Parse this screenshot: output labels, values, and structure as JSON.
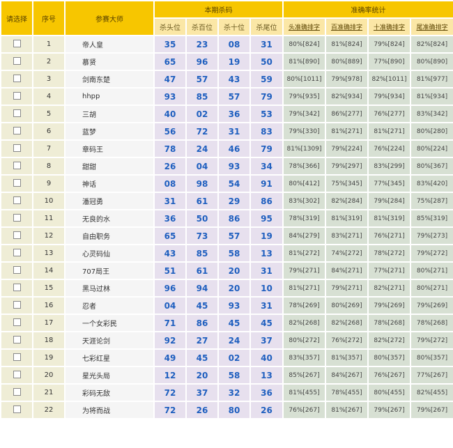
{
  "headers": {
    "select": "请选择",
    "seq": "序号",
    "master": "参赛大师",
    "kill_group": "本期杀码",
    "kill": [
      "杀头位",
      "杀百位",
      "杀十位",
      "杀尾位"
    ],
    "acc_group": "准确率统计",
    "acc": [
      "头准确排字",
      "百准确排字",
      "十准确排字",
      "尾准确排字"
    ]
  },
  "rows": [
    {
      "seq": "1",
      "name": "帝人皇",
      "kill": [
        "35",
        "23",
        "08",
        "31"
      ],
      "acc": [
        "80%[824]",
        "81%[824]",
        "79%[824]",
        "82%[824]"
      ]
    },
    {
      "seq": "2",
      "name": "慕贤",
      "kill": [
        "65",
        "96",
        "19",
        "50"
      ],
      "acc": [
        "81%[890]",
        "80%[889]",
        "77%[890]",
        "80%[890]"
      ]
    },
    {
      "seq": "3",
      "name": "剑南东楚",
      "kill": [
        "47",
        "57",
        "43",
        "59"
      ],
      "acc": [
        "80%[1011]",
        "79%[978]",
        "82%[1011]",
        "81%[977]"
      ]
    },
    {
      "seq": "4",
      "name": "hhpp",
      "kill": [
        "93",
        "85",
        "57",
        "79"
      ],
      "acc": [
        "79%[935]",
        "82%[934]",
        "79%[934]",
        "81%[934]"
      ]
    },
    {
      "seq": "5",
      "name": "三胡",
      "kill": [
        "40",
        "02",
        "36",
        "53"
      ],
      "acc": [
        "79%[342]",
        "86%[277]",
        "76%[277]",
        "83%[342]"
      ]
    },
    {
      "seq": "6",
      "name": "蓝梦",
      "kill": [
        "56",
        "72",
        "31",
        "83"
      ],
      "acc": [
        "79%[330]",
        "81%[271]",
        "81%[271]",
        "80%[280]"
      ]
    },
    {
      "seq": "7",
      "name": "章码王",
      "kill": [
        "78",
        "24",
        "46",
        "79"
      ],
      "acc": [
        "81%[1309]",
        "79%[224]",
        "76%[224]",
        "80%[224]"
      ]
    },
    {
      "seq": "8",
      "name": "甜甜",
      "kill": [
        "26",
        "04",
        "93",
        "34"
      ],
      "acc": [
        "78%[366]",
        "79%[297]",
        "83%[299]",
        "80%[367]"
      ]
    },
    {
      "seq": "9",
      "name": "神话",
      "kill": [
        "08",
        "98",
        "54",
        "91"
      ],
      "acc": [
        "80%[412]",
        "75%[345]",
        "77%[345]",
        "83%[420]"
      ]
    },
    {
      "seq": "10",
      "name": "潘冠勇",
      "kill": [
        "31",
        "61",
        "29",
        "86"
      ],
      "acc": [
        "83%[302]",
        "82%[284]",
        "79%[284]",
        "75%[287]"
      ]
    },
    {
      "seq": "11",
      "name": "无良的水",
      "kill": [
        "36",
        "50",
        "86",
        "95"
      ],
      "acc": [
        "78%[319]",
        "81%[319]",
        "81%[319]",
        "85%[319]"
      ]
    },
    {
      "seq": "12",
      "name": "自由职务",
      "kill": [
        "65",
        "73",
        "57",
        "19"
      ],
      "acc": [
        "84%[279]",
        "83%[271]",
        "76%[271]",
        "79%[273]"
      ]
    },
    {
      "seq": "13",
      "name": "心灵码仙",
      "kill": [
        "43",
        "85",
        "58",
        "13"
      ],
      "acc": [
        "81%[272]",
        "74%[272]",
        "78%[272]",
        "79%[272]"
      ]
    },
    {
      "seq": "14",
      "name": "707局王",
      "kill": [
        "51",
        "61",
        "20",
        "31"
      ],
      "acc": [
        "79%[271]",
        "84%[271]",
        "77%[271]",
        "80%[271]"
      ]
    },
    {
      "seq": "15",
      "name": "黑马过林",
      "kill": [
        "96",
        "94",
        "20",
        "10"
      ],
      "acc": [
        "81%[271]",
        "79%[271]",
        "82%[271]",
        "80%[271]"
      ]
    },
    {
      "seq": "16",
      "name": "忍者",
      "kill": [
        "04",
        "45",
        "93",
        "31"
      ],
      "acc": [
        "78%[269]",
        "80%[269]",
        "79%[269]",
        "79%[269]"
      ]
    },
    {
      "seq": "17",
      "name": "一个女彩民",
      "kill": [
        "71",
        "86",
        "45",
        "45"
      ],
      "acc": [
        "82%[268]",
        "82%[268]",
        "78%[268]",
        "78%[268]"
      ]
    },
    {
      "seq": "18",
      "name": "天涯论剑",
      "kill": [
        "92",
        "27",
        "24",
        "37"
      ],
      "acc": [
        "80%[272]",
        "76%[272]",
        "82%[272]",
        "79%[272]"
      ]
    },
    {
      "seq": "19",
      "name": "七彩红星",
      "kill": [
        "49",
        "45",
        "02",
        "40"
      ],
      "acc": [
        "83%[357]",
        "81%[357]",
        "80%[357]",
        "80%[357]"
      ]
    },
    {
      "seq": "20",
      "name": "星光头局",
      "kill": [
        "12",
        "20",
        "58",
        "13"
      ],
      "acc": [
        "85%[267]",
        "84%[267]",
        "76%[267]",
        "77%[267]"
      ]
    },
    {
      "seq": "21",
      "name": "彩码无敌",
      "kill": [
        "72",
        "37",
        "32",
        "36"
      ],
      "acc": [
        "81%[455]",
        "78%[455]",
        "80%[455]",
        "82%[455]"
      ]
    },
    {
      "seq": "22",
      "name": "为将而战",
      "kill": [
        "72",
        "26",
        "80",
        "26"
      ],
      "acc": [
        "76%[267]",
        "81%[267]",
        "79%[267]",
        "79%[267]"
      ]
    }
  ]
}
